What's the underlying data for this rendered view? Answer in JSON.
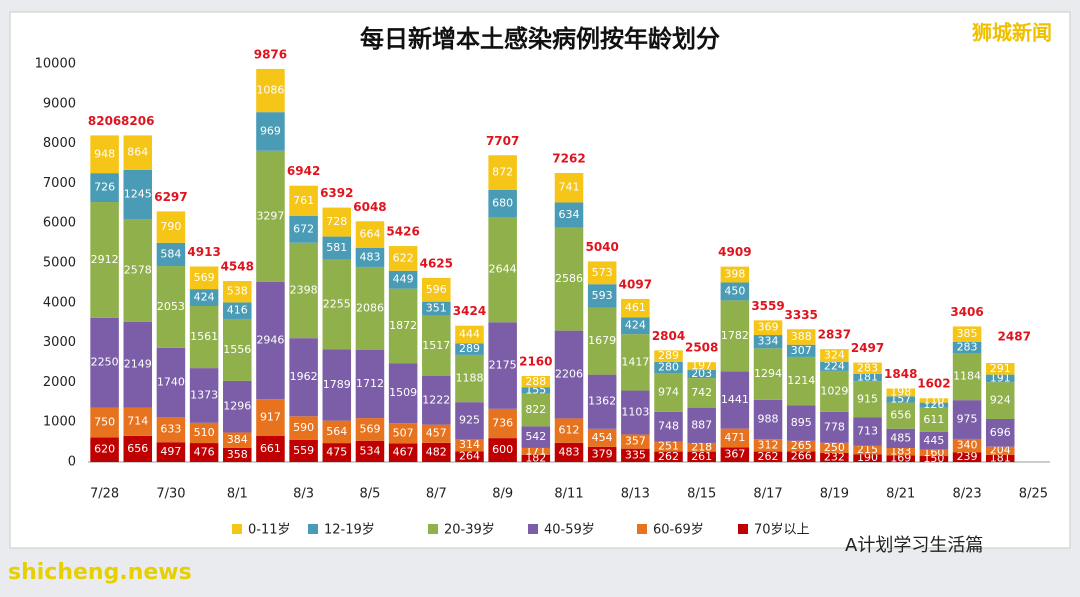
{
  "chart_data": {
    "type": "stacked_bar",
    "title": "每日新增本土感染病例按年龄划分",
    "watermark": "狮城新闻",
    "site": "shicheng.news",
    "source": "A计划学习生活篇",
    "categories": [
      "7/28",
      null,
      "7/30",
      null,
      "8/1",
      null,
      "8/3",
      null,
      "8/5",
      null,
      "8/7",
      null,
      "8/9",
      null,
      "8/11",
      null,
      "8/13",
      null,
      "8/15",
      null,
      "8/17",
      null,
      "8/19",
      null,
      "8/21",
      null,
      "8/23",
      null,
      "8/25"
    ],
    "series": [
      {
        "name": "70岁以上",
        "color": "#c00000",
        "values": [
          620,
          656,
          497,
          476,
          358,
          661,
          559,
          475,
          534,
          467,
          482,
          264,
          600,
          182,
          483,
          379,
          335,
          262,
          261,
          367,
          262,
          266,
          232,
          190,
          169,
          150,
          239,
          181,
          null
        ]
      },
      {
        "name": "60-69岁",
        "color": "#e8731f",
        "values": [
          750,
          714,
          633,
          510,
          384,
          917,
          590,
          564,
          569,
          507,
          457,
          314,
          736,
          171,
          612,
          454,
          357,
          251,
          218,
          471,
          312,
          265,
          250,
          215,
          183,
          160,
          340,
          204,
          null
        ]
      },
      {
        "name": "40-59岁",
        "color": "#7b5ea7",
        "values": [
          2250,
          2149,
          1740,
          1373,
          1296,
          2946,
          1962,
          1789,
          1712,
          1509,
          1222,
          925,
          2175,
          542,
          2206,
          1362,
          1103,
          748,
          887,
          1441,
          988,
          895,
          778,
          713,
          485,
          445,
          975,
          696,
          null
        ]
      },
      {
        "name": "20-39岁",
        "color": "#8fb04a",
        "values": [
          2912,
          2578,
          2053,
          1561,
          1556,
          3297,
          2398,
          2255,
          2086,
          1872,
          1517,
          1188,
          2644,
          822,
          2586,
          1679,
          1417,
          974,
          742,
          1782,
          1294,
          1214,
          1029,
          915,
          656,
          611,
          1184,
          924,
          null
        ]
      },
      {
        "name": "12-19岁",
        "color": "#4a9bb5",
        "values": [
          726,
          1245,
          584,
          424,
          416,
          969,
          672,
          581,
          483,
          449,
          351,
          289,
          680,
          155,
          634,
          593,
          424,
          280,
          203,
          450,
          334,
          307,
          224,
          181,
          157,
          126,
          283,
          191,
          null
        ]
      },
      {
        "name": "0-11岁",
        "color": "#f5c518",
        "values": [
          948,
          864,
          790,
          569,
          538,
          1086,
          761,
          728,
          664,
          622,
          596,
          444,
          872,
          288,
          741,
          573,
          461,
          289,
          197,
          398,
          369,
          388,
          324,
          283,
          198,
          110,
          385,
          291,
          null
        ]
      }
    ],
    "totals": [
      8206,
      8206,
      6297,
      4913,
      4548,
      9876,
      6942,
      6392,
      6048,
      5426,
      4625,
      3424,
      7707,
      2160,
      7262,
      5040,
      4097,
      2804,
      2508,
      4909,
      3559,
      3335,
      2837,
      2497,
      1848,
      1602,
      3406,
      2487,
      null
    ],
    "ylim": [
      0,
      10000
    ],
    "yticks": [
      0,
      1000,
      2000,
      3000,
      4000,
      5000,
      6000,
      7000,
      8000,
      9000,
      10000
    ],
    "grid": false,
    "legend": "bottom"
  }
}
